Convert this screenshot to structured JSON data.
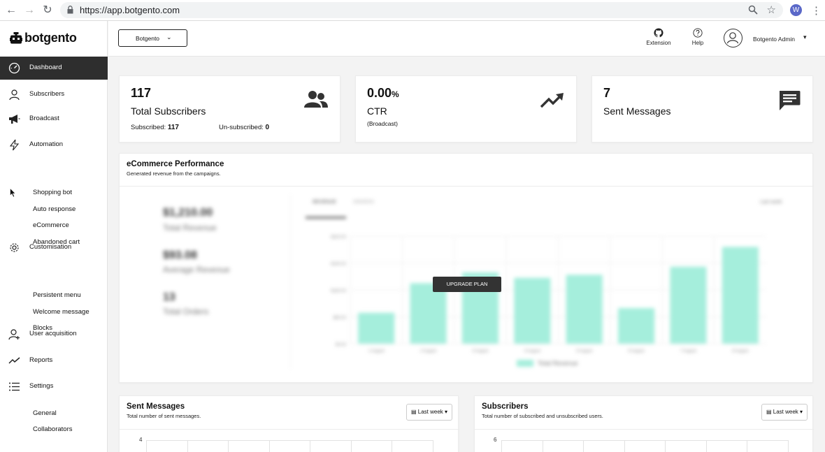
{
  "browser": {
    "url": "https://app.botgento.com",
    "profile_initial": "W"
  },
  "sidebar": {
    "brand": "botgento",
    "items": [
      {
        "label": "Dashboard",
        "icon": "gauge-icon"
      },
      {
        "label": "Subscribers",
        "icon": "person-icon"
      },
      {
        "label": "Broadcast",
        "icon": "megaphone-icon"
      },
      {
        "label": "Automation",
        "icon": "lightning-icon"
      },
      {
        "label": "Customisation",
        "icon": "gear-icon"
      },
      {
        "label": "User acquisition",
        "icon": "user-add-icon"
      },
      {
        "label": "Reports",
        "icon": "trend-icon"
      },
      {
        "label": "Settings",
        "icon": "list-icon"
      }
    ],
    "automation_sub": [
      "Shopping bot",
      "Auto response",
      "eCommerce",
      "Abandoned cart"
    ],
    "customisation_sub": [
      "Persistent menu",
      "Welcome message",
      "Blocks"
    ],
    "settings_sub": [
      "General",
      "Collaborators"
    ]
  },
  "topbar": {
    "bot_select": "Botgento",
    "extension_label": "Extension",
    "help_label": "Help",
    "user_name": "Botgento Admin"
  },
  "stats": {
    "subscribers": {
      "value": "117",
      "title": "Total Subscribers",
      "subscribed_label": "Subscribed:",
      "subscribed_value": "117",
      "unsubscribed_label": "Un-subscribed:",
      "unsubscribed_value": "0"
    },
    "ctr": {
      "value": "0.00",
      "unit": "%",
      "title": "CTR",
      "note": "(Broadcast)"
    },
    "sent": {
      "value": "7",
      "title": "Sent Messages"
    }
  },
  "ecommerce": {
    "title": "eCommerce Performance",
    "subtitle": "Generated revenue from the campaigns.",
    "upgrade_label": "UPGRADE PLAN",
    "blurred_stats": [
      {
        "value": "$1,210.00",
        "label": "Total Revenue"
      },
      {
        "value": "$93.08",
        "label": "Average Revenue"
      },
      {
        "value": "13",
        "label": "Total Orders"
      }
    ],
    "tabs": [
      "REVENUE",
      "ORDERS"
    ],
    "range": "Last week",
    "legend": "Total Revenue"
  },
  "chart_data": {
    "type": "bar",
    "categories": [
      "1 August",
      "2 August",
      "3 August",
      "4 August",
      "5 August",
      "6 August",
      "7 August",
      "8 August"
    ],
    "series": [
      {
        "name": "Total Revenue",
        "values": [
          92,
          180,
          212,
          196,
          205,
          106,
          229,
          288
        ]
      }
    ],
    "ylim": [
      0,
      320
    ],
    "yticks": [
      "$0.00",
      "$80.00",
      "$160.00",
      "$240.00",
      "$320.00"
    ],
    "color": "#a5eedc"
  },
  "sent_messages_panel": {
    "title": "Sent Messages",
    "subtitle": "Total number of sent messages.",
    "range": "Last week",
    "first_tick": "4"
  },
  "subscribers_panel": {
    "title": "Subscribers",
    "subtitle": "Total number of subscribed and unsubscribed users.",
    "range": "Last week",
    "first_tick": "6"
  }
}
